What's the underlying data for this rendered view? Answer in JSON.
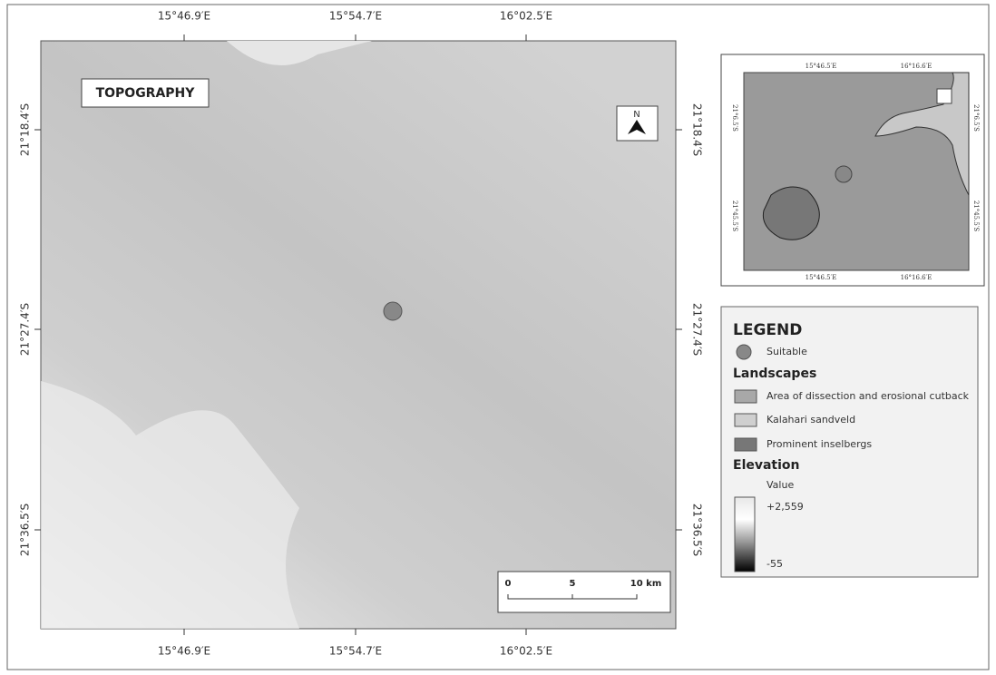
{
  "map": {
    "title": "TOPOGRAPHY",
    "north": "N",
    "x_labels": [
      "15°46.9′E",
      "15°54.7′E",
      "16°02.5′E"
    ],
    "y_labels": [
      "21°18.4′S",
      "21°27.4′S",
      "21°36.5′S"
    ],
    "scale": [
      "0",
      "5",
      "10 km"
    ]
  },
  "inset": {
    "x_labels": [
      "15°46.5′E",
      "16°16.6′E"
    ],
    "y_labels": [
      "21°6.5′S",
      "21°45.5′S"
    ]
  },
  "legend": {
    "title": "LEGEND",
    "suitable": "Suitable",
    "landscapes_title": "Landscapes",
    "landscapes": [
      "Area of dissection and erosional cutback",
      "Kalahari sandveld",
      "Prominent inselbergs"
    ],
    "elevation_title": "Elevation",
    "value_label": "Value",
    "max": "+2,559",
    "min": "-55"
  }
}
